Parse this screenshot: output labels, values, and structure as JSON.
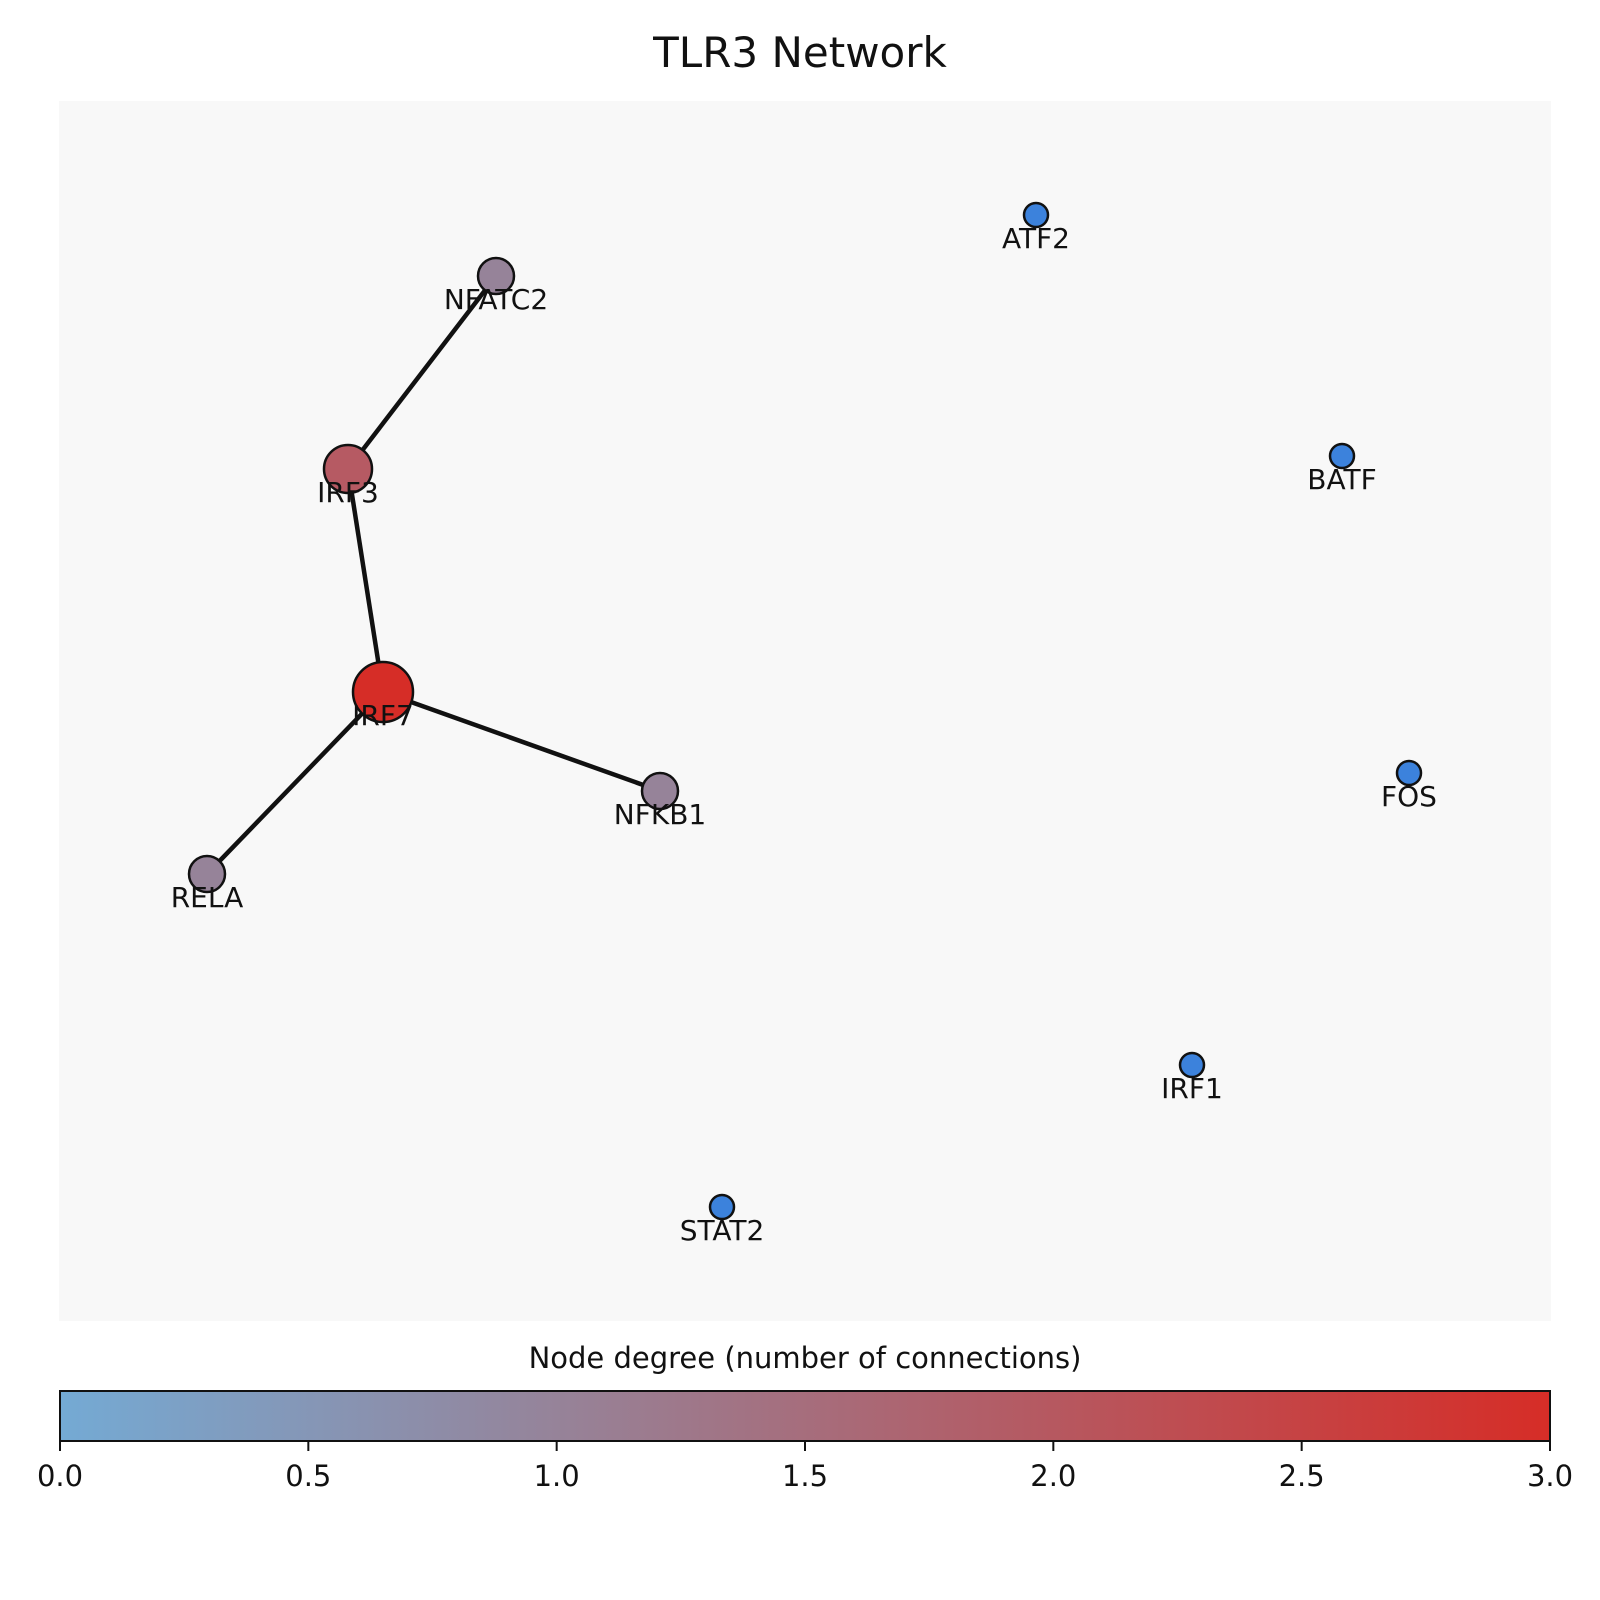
{
  "title": "TLR3 Network",
  "colorbar": {
    "label": "Node degree (number of connections)",
    "min": 0,
    "max": 3,
    "ticks": [
      "0.0",
      "0.5",
      "1.0",
      "1.5",
      "2.0",
      "2.5",
      "3.0"
    ],
    "color_low": "#74aad4",
    "color_mid": "#968399",
    "color_high": "#d62d27"
  },
  "colors": {
    "panel_background": "#f8f8f8",
    "edge": "#111111",
    "node_outline": "#111111"
  },
  "nodes": [
    {
      "id": "NFATC2",
      "degree": 1,
      "color": "#968399"
    },
    {
      "id": "IRF3",
      "degree": 2,
      "color": "#b65a63"
    },
    {
      "id": "IRF7",
      "degree": 3,
      "color": "#d62d27"
    },
    {
      "id": "NFKB1",
      "degree": 1,
      "color": "#968399"
    },
    {
      "id": "RELA",
      "degree": 1,
      "color": "#968399"
    },
    {
      "id": "ATF2",
      "degree": 0,
      "color": "#3c82dc"
    },
    {
      "id": "BATF",
      "degree": 0,
      "color": "#3c82dc"
    },
    {
      "id": "FOS",
      "degree": 0,
      "color": "#3c82dc"
    },
    {
      "id": "IRF1",
      "degree": 0,
      "color": "#3c82dc"
    },
    {
      "id": "STAT2",
      "degree": 0,
      "color": "#3c82dc"
    }
  ],
  "edges": [
    {
      "source": "IRF3",
      "target": "NFATC2"
    },
    {
      "source": "IRF3",
      "target": "IRF7"
    },
    {
      "source": "IRF7",
      "target": "NFKB1"
    },
    {
      "source": "IRF7",
      "target": "RELA"
    }
  ]
}
